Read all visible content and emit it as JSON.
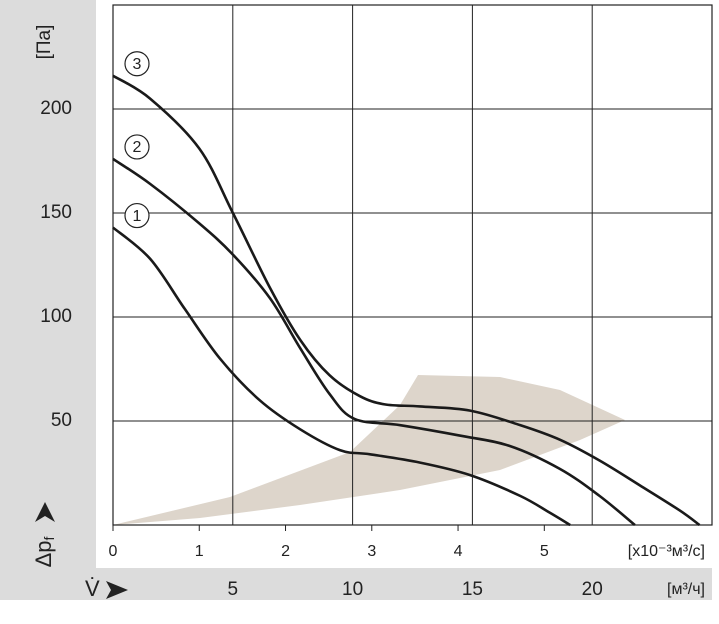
{
  "chart_data": {
    "type": "line",
    "ylabel": "Δp",
    "ylabel_sub": "f",
    "yunit": "[Па]",
    "xlabel": "V̇",
    "xunit": "[x10⁻³м³/с]",
    "x2unit": "[м³/ч]",
    "ylim": [
      0,
      250
    ],
    "yticks": [
      50,
      100,
      150,
      200
    ],
    "xlim": [
      0,
      6.944
    ],
    "xticks": [
      0,
      1,
      2,
      3,
      4,
      5
    ],
    "x2lim": [
      0,
      25
    ],
    "x2ticks": [
      5,
      10,
      15,
      20
    ],
    "grid": true,
    "series": [
      {
        "name": "1",
        "color": "#1a1a1a",
        "x": [
          0,
          0.43,
          0.83,
          1.24,
          1.7,
          2.17,
          2.63,
          2.98,
          3.56,
          4.14,
          4.72,
          5.06,
          5.3
        ],
        "values": [
          143,
          128,
          104,
          80,
          60,
          46,
          36,
          34,
          30,
          24,
          14,
          6,
          0
        ]
      },
      {
        "name": "2",
        "color": "#1a1a1a",
        "x": [
          0,
          0.43,
          1.0,
          1.39,
          1.82,
          2.17,
          2.51,
          2.8,
          3.33,
          4.02,
          4.6,
          5.18,
          5.64,
          6.05
        ],
        "values": [
          176,
          164,
          145,
          130,
          109,
          85,
          63,
          51,
          48,
          43,
          38,
          27,
          14,
          0
        ]
      },
      {
        "name": "3",
        "color": "#1a1a1a",
        "x": [
          0,
          0.43,
          1.0,
          1.39,
          1.82,
          2.17,
          2.51,
          2.86,
          3.15,
          3.56,
          4.14,
          4.72,
          5.18,
          5.64,
          6.11,
          6.57,
          6.8
        ],
        "values": [
          216,
          205,
          181,
          150,
          114,
          89,
          72,
          62,
          58,
          57,
          55,
          48,
          41,
          31,
          19,
          7,
          0
        ]
      }
    ]
  }
}
